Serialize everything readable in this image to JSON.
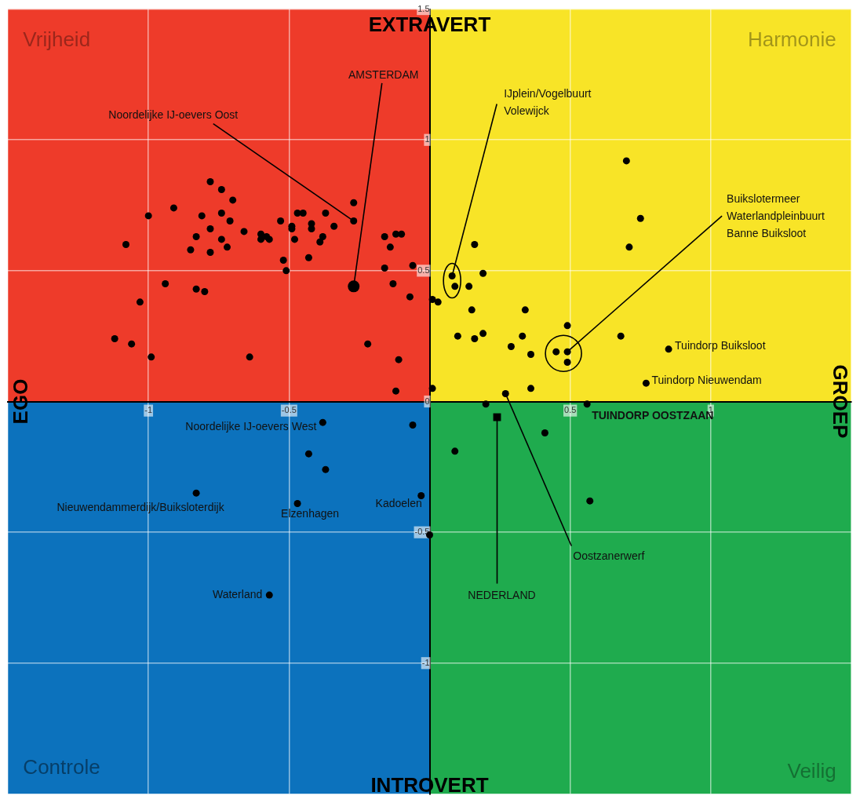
{
  "chart_data": {
    "type": "scatter",
    "xlim": [
      -1.5,
      1.5
    ],
    "ylim": [
      -1.5,
      1.5
    ],
    "xticks": [
      {
        "value": -1.5,
        "label": null
      },
      -1,
      -0.5,
      {
        "value": 0,
        "label": null
      },
      0.5,
      1,
      {
        "value": 1.5,
        "label": null
      }
    ],
    "yticks": [
      {
        "value": -1.5,
        "label": null
      },
      -1,
      -0.5,
      0,
      0.5,
      1,
      1.5
    ],
    "grid": true,
    "legend": false,
    "series": [
      {
        "type": "scatter",
        "marker": "circle",
        "color": "#000000",
        "x": [
          -0.78,
          -0.74,
          -0.7,
          -0.91,
          -1.0,
          -0.81,
          -0.74,
          -0.71,
          -0.78,
          -0.83,
          -0.74,
          -1.08,
          -0.85,
          -0.78,
          -0.72,
          -0.66,
          -0.6,
          -0.6,
          -0.57,
          -0.58,
          -0.53,
          -0.49,
          -0.49,
          -0.48,
          -0.47,
          -0.45,
          -0.42,
          -0.42,
          -0.37,
          -0.34,
          -0.38,
          -0.39,
          -0.27,
          -0.27,
          -0.43,
          -0.52,
          -0.51,
          -0.16,
          -0.12,
          -0.1,
          -0.14,
          -0.16,
          -0.06,
          -0.94,
          -0.83,
          -0.8,
          -1.03,
          -0.13,
          -0.07,
          -1.12,
          -1.06,
          -0.99,
          -0.64,
          -0.22,
          -0.11,
          -0.12,
          0.7,
          0.75,
          0.71,
          0.16,
          0.19,
          0.08,
          0.09,
          0.14,
          0.01,
          0.03,
          0.15,
          0.34,
          0.49,
          0.1,
          0.16,
          0.19,
          0.33,
          0.29,
          0.36,
          0.68,
          0.45,
          0.49,
          0.49,
          0.85,
          0.77,
          0.01,
          0.36,
          0.27,
          0.2,
          0.56,
          0.41,
          0.09,
          0.57,
          0.0,
          -0.38,
          -0.06,
          -0.43,
          -0.37,
          -0.83,
          -0.47,
          -0.03,
          -0.57
        ],
        "values": [
          0.84,
          0.81,
          0.77,
          0.74,
          0.71,
          0.71,
          0.72,
          0.69,
          0.66,
          0.63,
          0.62,
          0.6,
          0.58,
          0.57,
          0.59,
          0.65,
          0.64,
          0.62,
          0.62,
          0.63,
          0.69,
          0.67,
          0.66,
          0.62,
          0.72,
          0.72,
          0.68,
          0.66,
          0.72,
          0.67,
          0.63,
          0.61,
          0.76,
          0.69,
          0.55,
          0.54,
          0.5,
          0.63,
          0.64,
          0.64,
          0.59,
          0.51,
          0.52,
          0.45,
          0.43,
          0.42,
          0.38,
          0.45,
          0.4,
          0.24,
          0.22,
          0.17,
          0.17,
          0.22,
          0.16,
          0.04,
          0.92,
          0.7,
          0.59,
          0.6,
          0.49,
          0.48,
          0.44,
          0.44,
          0.39,
          0.38,
          0.35,
          0.35,
          0.29,
          0.25,
          0.24,
          0.26,
          0.25,
          0.21,
          0.18,
          0.25,
          0.19,
          0.19,
          0.15,
          0.2,
          0.07,
          0.05,
          0.05,
          0.03,
          -0.01,
          -0.01,
          -0.12,
          -0.19,
          -0.38,
          -0.51,
          -0.08,
          -0.09,
          -0.2,
          -0.26,
          -0.35,
          -0.39,
          -0.36,
          -0.74
        ]
      },
      {
        "type": "scatter",
        "marker": "circle",
        "color": "#000000",
        "x": [
          -0.27
        ],
        "values": [
          0.44
        ]
      },
      {
        "type": "scatter",
        "marker": "square",
        "color": "#000000",
        "x": [
          0.24
        ],
        "values": [
          -0.06
        ]
      }
    ],
    "annotations": [
      {
        "text": "AMSTERDAM",
        "x": -0.27,
        "y": 0.44
      },
      {
        "text": "Noordelijke IJ-oevers Oost",
        "x": -0.27,
        "y": 0.69
      },
      {
        "text": "IJplein/Vogelbuurt\nVolewijck",
        "x": 0.08,
        "y": 0.48
      },
      {
        "text": "Buikslotermeer\nWaterlandpleinbuurt\nBanne Buiksloot",
        "x": 0.49,
        "y": 0.19
      },
      {
        "text": "Tuindorp Buiksloot",
        "x": 0.85,
        "y": 0.2
      },
      {
        "text": "Tuindorp Nieuwendam",
        "x": 0.77,
        "y": 0.07
      },
      {
        "text": "TUINDORP OOSTZAAN",
        "x": 0.56,
        "y": -0.01
      },
      {
        "text": "NEDERLAND",
        "x": 0.24,
        "y": -0.06
      },
      {
        "text": "Oostzanerwerf",
        "x": 0.27,
        "y": 0.03
      },
      {
        "text": "Noordelijke IJ-oevers West",
        "x": -0.38,
        "y": -0.08
      },
      {
        "text": "Nieuwendammerdijk/Buiksloterdijk",
        "x": -0.83,
        "y": -0.35
      },
      {
        "text": "Elzenhagen",
        "x": -0.47,
        "y": -0.39
      },
      {
        "text": "Kadoelen",
        "x": -0.03,
        "y": -0.36
      },
      {
        "text": "Waterland",
        "x": -0.57,
        "y": -0.74
      },
      "Vrijheid",
      "Harmonie",
      "Controle",
      "Veilig",
      "EXTRAVERT",
      "INTROVERT",
      "EGO",
      "GROEP"
    ]
  }
}
